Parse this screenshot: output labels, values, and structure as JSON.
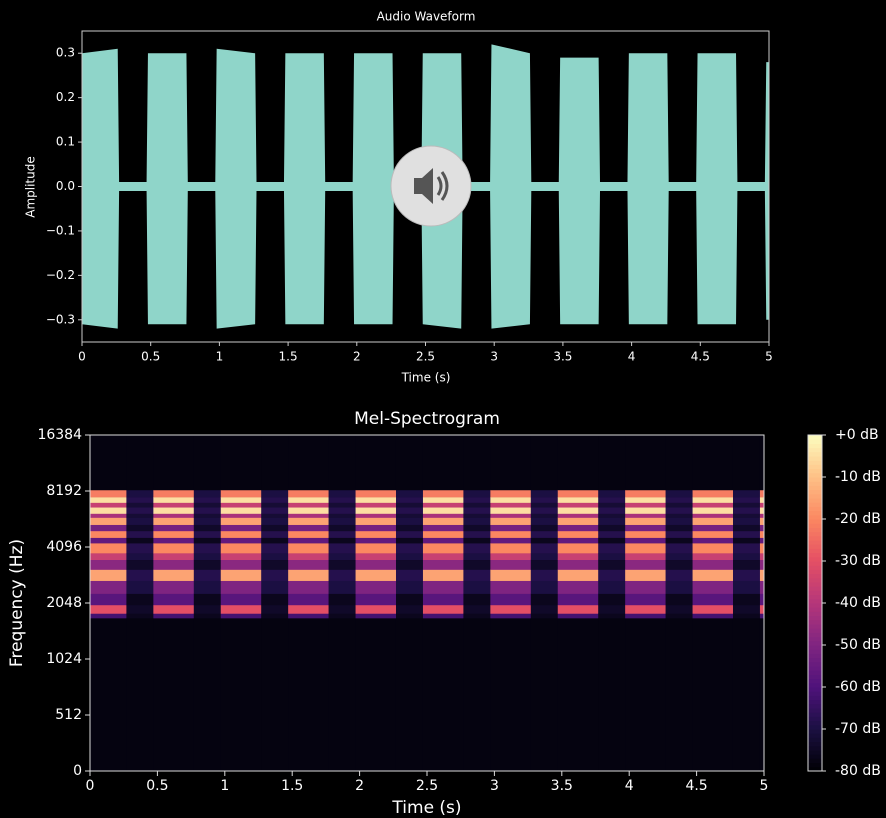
{
  "chart_data": [
    {
      "type": "area",
      "title": "Audio Waveform",
      "xlabel": "Time (s)",
      "ylabel": "Amplitude",
      "x": [
        0,
        0.26,
        0.27,
        0.47,
        0.48,
        0.76,
        0.77,
        0.97,
        0.98,
        1.26,
        1.27,
        1.47,
        1.48,
        1.76,
        1.77,
        1.97,
        1.98,
        2.26,
        2.27,
        2.47,
        2.48,
        2.76,
        2.77,
        2.97,
        2.98,
        3.26,
        3.27,
        3.47,
        3.48,
        3.76,
        3.77,
        3.97,
        3.98,
        4.26,
        4.27,
        4.47,
        4.48,
        4.76,
        4.77,
        4.97,
        4.98,
        5
      ],
      "series": [
        {
          "color": "#8fd5c9",
          "values": [
            0.3,
            0.31,
            0.01,
            0.01,
            0.3,
            0.3,
            0.01,
            0.01,
            0.31,
            0.3,
            0.01,
            0.01,
            0.3,
            0.3,
            0.01,
            0.01,
            0.3,
            0.3,
            0.01,
            0.01,
            0.3,
            0.3,
            0.01,
            0.01,
            0.32,
            0.3,
            0.01,
            0.01,
            0.29,
            0.29,
            0.01,
            0.01,
            0.3,
            0.3,
            0.01,
            0.01,
            0.3,
            0.3,
            0.01,
            0.01,
            0.28,
            0.28
          ]
        },
        {
          "color": "#8fd5c9",
          "values": [
            -0.31,
            -0.32,
            -0.01,
            -0.01,
            -0.31,
            -0.31,
            -0.01,
            -0.01,
            -0.32,
            -0.31,
            -0.01,
            -0.01,
            -0.31,
            -0.31,
            -0.01,
            -0.01,
            -0.31,
            -0.31,
            -0.01,
            -0.01,
            -0.31,
            -0.32,
            -0.01,
            -0.01,
            -0.32,
            -0.31,
            -0.01,
            -0.01,
            -0.31,
            -0.31,
            -0.01,
            -0.01,
            -0.31,
            -0.31,
            -0.01,
            -0.01,
            -0.31,
            -0.31,
            -0.01,
            -0.01,
            -0.3,
            -0.3
          ]
        }
      ],
      "xlim": [
        0,
        5
      ],
      "ylim": [
        -0.35,
        0.35
      ],
      "xticks": [
        0,
        0.5,
        1,
        1.5,
        2,
        2.5,
        3,
        3.5,
        4,
        4.5,
        5
      ],
      "yticks": [
        {
          "value": -0.3,
          "label": "−0.3"
        },
        {
          "value": -0.2,
          "label": "−0.2"
        },
        {
          "value": -0.1,
          "label": "−0.1"
        },
        {
          "value": 0,
          "label": "0.0"
        },
        0.1,
        0.2,
        0.3
      ]
    },
    {
      "type": "heatmap",
      "title": "Mel-Spectrogram",
      "xlabel": "Time (s)",
      "ylabel": "Frequency (Hz)",
      "x_edges": [
        0,
        0.27,
        0.47,
        0.77,
        0.97,
        1.27,
        1.47,
        1.77,
        1.97,
        2.27,
        2.47,
        2.77,
        2.97,
        3.27,
        3.47,
        3.77,
        3.97,
        4.27,
        4.47,
        4.77,
        4.97,
        5
      ],
      "y_edges": [
        0,
        1700,
        1800,
        2000,
        2300,
        2700,
        3100,
        3500,
        3800,
        4300,
        4600,
        5000,
        5400,
        5900,
        6200,
        6700,
        7100,
        7600,
        8300,
        16384
      ],
      "z": {
        "burst": [
          -78,
          -62,
          -30,
          -58,
          -50,
          -15,
          -48,
          -36,
          -20,
          -56,
          -20,
          -52,
          -15,
          -42,
          -5,
          -36,
          -5,
          -22,
          -78
        ],
        "gap": [
          -78,
          -76,
          -74,
          -76,
          -70,
          -68,
          -74,
          -70,
          -68,
          -76,
          -68,
          -74,
          -70,
          -72,
          -68,
          -72,
          -68,
          -70,
          -78
        ]
      },
      "xlim": [
        0,
        5
      ],
      "ylim": [
        0,
        16384
      ],
      "yscale": "symlog",
      "xticks": [
        0,
        0.5,
        1,
        1.5,
        2,
        2.5,
        3,
        3.5,
        4,
        4.5,
        5
      ],
      "yticks": [
        0,
        512,
        1024,
        2048,
        4096,
        8192,
        16384
      ],
      "zlim": [
        -80,
        0
      ],
      "colormap": "magma",
      "zticks": [
        {
          "value": 0,
          "label": "+0 dB"
        },
        {
          "value": -10,
          "label": "-10 dB"
        },
        {
          "value": -20,
          "label": "-20 dB"
        },
        {
          "value": -30,
          "label": "-30 dB"
        },
        {
          "value": -40,
          "label": "-40 dB"
        },
        {
          "value": -50,
          "label": "-50 dB"
        },
        {
          "value": -60,
          "label": "-60 dB"
        },
        {
          "value": -70,
          "label": "-70 dB"
        },
        {
          "value": -80,
          "label": "-80 dB"
        }
      ]
    }
  ]
}
